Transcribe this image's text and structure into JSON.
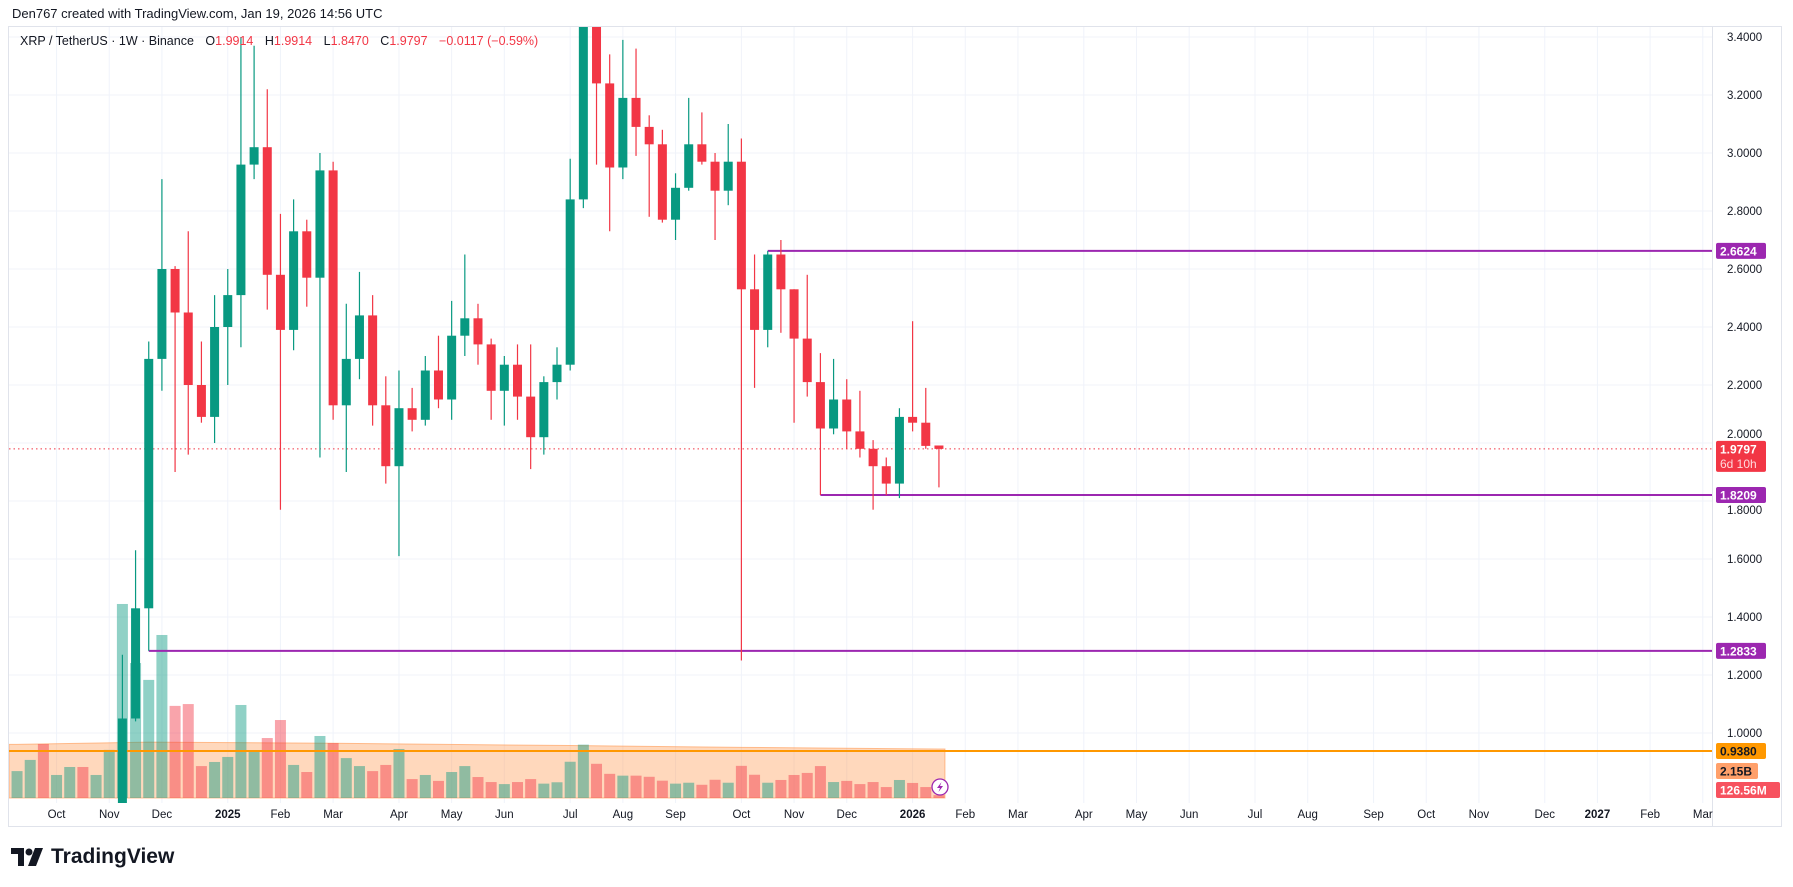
{
  "attribution": "Den767 created with TradingView.com, Jan 19, 2026 14:56 UTC",
  "legend": {
    "symbol": "XRP / TetherUS · 1W · Binance",
    "open_label": "O",
    "open": "1.9914",
    "high_label": "H",
    "high": "1.9914",
    "low_label": "L",
    "low": "1.8470",
    "close_label": "C",
    "close": "1.9797",
    "change": "−0.0117 (−0.59%)"
  },
  "branding": {
    "logo_text": "TradingView"
  },
  "colors": {
    "up": "#089981",
    "down": "#f23645",
    "level_line": "#9c27b0",
    "orange_line": "#ff9800",
    "volume_ma": "#ff9f5a",
    "grid": "#f0f3fa"
  },
  "chart_data": {
    "type": "candlestick",
    "interval": "1W",
    "y_axis": {
      "range": [
        0.77,
        3.43
      ],
      "ticks": [
        "3.4000",
        "3.2000",
        "3.0000",
        "2.8000",
        "2.6000",
        "2.4000",
        "2.2000",
        "2.0000",
        "1.8000",
        "1.6000",
        "1.4000",
        "1.2000",
        "1.0000"
      ],
      "position": "right"
    },
    "x_ticks": [
      {
        "label": "Oct",
        "date": "2024-10-07"
      },
      {
        "label": "Nov",
        "date": "2024-11-04"
      },
      {
        "label": "Dec",
        "date": "2024-12-02"
      },
      {
        "label": "2025",
        "date": "2025-01-06",
        "bold": true
      },
      {
        "label": "Feb",
        "date": "2025-02-03"
      },
      {
        "label": "Mar",
        "date": "2025-03-03"
      },
      {
        "label": "Apr",
        "date": "2025-04-07"
      },
      {
        "label": "May",
        "date": "2025-05-05"
      },
      {
        "label": "Jun",
        "date": "2025-06-02"
      },
      {
        "label": "Jul",
        "date": "2025-07-07"
      },
      {
        "label": "Aug",
        "date": "2025-08-04"
      },
      {
        "label": "Sep",
        "date": "2025-09-01"
      },
      {
        "label": "Oct",
        "date": "2025-10-06"
      },
      {
        "label": "Nov",
        "date": "2025-11-03"
      },
      {
        "label": "Dec",
        "date": "2025-12-01"
      },
      {
        "label": "2026",
        "date": "2026-01-05",
        "bold": true
      },
      {
        "label": "Feb",
        "date": "2026-02-02"
      },
      {
        "label": "Mar",
        "date": "2026-03-02"
      },
      {
        "label": "Apr",
        "date": "2026-04-06"
      },
      {
        "label": "May",
        "date": "2026-05-04"
      },
      {
        "label": "Jun",
        "date": "2026-06-01"
      },
      {
        "label": "Jul",
        "date": "2026-07-06"
      },
      {
        "label": "Aug",
        "date": "2026-08-03"
      },
      {
        "label": "Sep",
        "date": "2026-09-07"
      },
      {
        "label": "Oct",
        "date": "2026-10-05"
      },
      {
        "label": "Nov",
        "date": "2026-11-02"
      },
      {
        "label": "Dec",
        "date": "2026-12-07"
      },
      {
        "label": "2027",
        "date": "2027-01-04",
        "bold": true
      },
      {
        "label": "Feb",
        "date": "2027-02-01"
      },
      {
        "label": "Mar",
        "date": "2027-03-01"
      }
    ],
    "grid": true,
    "columns": [
      "date",
      "open",
      "high",
      "low",
      "close",
      "volume_billions",
      "direction"
    ],
    "rows": [
      [
        "2024-09-16",
        null,
        null,
        null,
        null,
        1.18,
        "up"
      ],
      [
        "2024-09-23",
        null,
        null,
        null,
        null,
        1.67,
        "up"
      ],
      [
        "2024-09-30",
        null,
        null,
        null,
        null,
        2.37,
        "down"
      ],
      [
        "2024-10-07",
        null,
        null,
        null,
        null,
        1.01,
        "up"
      ],
      [
        "2024-10-14",
        null,
        null,
        null,
        null,
        1.36,
        "up"
      ],
      [
        "2024-10-21",
        null,
        null,
        null,
        null,
        1.36,
        "down"
      ],
      [
        "2024-10-28",
        null,
        null,
        null,
        null,
        1.01,
        "up"
      ],
      [
        "2024-11-04",
        null,
        null,
        null,
        null,
        2.11,
        "up"
      ],
      [
        "2024-11-11",
        0.57,
        1.27,
        0.55,
        1.05,
        8.51,
        "up"
      ],
      [
        "2024-11-18",
        1.05,
        1.63,
        1.04,
        1.43,
        5.92,
        "up"
      ],
      [
        "2024-11-25",
        1.43,
        2.35,
        1.2833,
        2.29,
        5.18,
        "up"
      ],
      [
        "2024-12-02",
        2.29,
        2.91,
        2.18,
        2.6,
        7.15,
        "up"
      ],
      [
        "2024-12-09",
        2.6,
        2.61,
        1.9,
        2.45,
        4.04,
        "down"
      ],
      [
        "2024-12-16",
        2.45,
        2.73,
        1.96,
        2.2,
        4.12,
        "down"
      ],
      [
        "2024-12-23",
        2.2,
        2.35,
        2.07,
        2.09,
        1.4,
        "down"
      ],
      [
        "2024-12-30",
        2.09,
        2.51,
        2.0,
        2.4,
        1.58,
        "up"
      ],
      [
        "2025-01-06",
        2.4,
        2.6,
        2.2,
        2.51,
        1.8,
        "up"
      ],
      [
        "2025-01-13",
        2.51,
        3.4,
        2.33,
        2.96,
        4.08,
        "up"
      ],
      [
        "2025-01-20",
        2.96,
        3.37,
        2.91,
        3.02,
        2.02,
        "up"
      ],
      [
        "2025-01-27",
        3.02,
        3.22,
        2.46,
        2.58,
        2.63,
        "down"
      ],
      [
        "2025-02-03",
        2.58,
        2.79,
        1.77,
        2.39,
        3.42,
        "down"
      ],
      [
        "2025-02-10",
        2.39,
        2.84,
        2.32,
        2.73,
        1.45,
        "up"
      ],
      [
        "2025-02-17",
        2.73,
        2.77,
        2.47,
        2.57,
        1.14,
        "down"
      ],
      [
        "2025-02-24",
        2.57,
        3.0,
        1.95,
        2.94,
        2.72,
        "up"
      ],
      [
        "2025-03-03",
        2.94,
        2.97,
        2.08,
        2.13,
        2.41,
        "down"
      ],
      [
        "2025-03-10",
        2.13,
        2.48,
        1.9,
        2.29,
        1.75,
        "up"
      ],
      [
        "2025-03-17",
        2.29,
        2.59,
        2.22,
        2.44,
        1.4,
        "up"
      ],
      [
        "2025-03-24",
        2.44,
        2.51,
        2.06,
        2.13,
        1.18,
        "down"
      ],
      [
        "2025-03-31",
        2.13,
        2.23,
        1.86,
        1.92,
        1.45,
        "down"
      ],
      [
        "2025-04-07",
        1.92,
        2.25,
        1.61,
        2.12,
        2.15,
        "up"
      ],
      [
        "2025-04-14",
        2.12,
        2.19,
        2.04,
        2.08,
        0.83,
        "down"
      ],
      [
        "2025-04-21",
        2.08,
        2.3,
        2.06,
        2.25,
        1.01,
        "up"
      ],
      [
        "2025-04-28",
        2.25,
        2.37,
        2.12,
        2.15,
        0.75,
        "down"
      ],
      [
        "2025-05-05",
        2.15,
        2.49,
        2.08,
        2.37,
        1.14,
        "up"
      ],
      [
        "2025-05-12",
        2.37,
        2.65,
        2.3,
        2.43,
        1.4,
        "up"
      ],
      [
        "2025-05-19",
        2.43,
        2.48,
        2.27,
        2.34,
        0.92,
        "down"
      ],
      [
        "2025-05-26",
        2.34,
        2.36,
        2.08,
        2.18,
        0.7,
        "down"
      ],
      [
        "2025-06-02",
        2.18,
        2.3,
        2.06,
        2.27,
        0.61,
        "up"
      ],
      [
        "2025-06-09",
        2.27,
        2.34,
        2.08,
        2.16,
        0.7,
        "down"
      ],
      [
        "2025-06-16",
        2.16,
        2.34,
        1.91,
        2.02,
        0.83,
        "down"
      ],
      [
        "2025-06-23",
        2.02,
        2.23,
        1.96,
        2.21,
        0.63,
        "up"
      ],
      [
        "2025-06-30",
        2.21,
        2.33,
        2.15,
        2.27,
        0.69,
        "up"
      ],
      [
        "2025-07-07",
        2.27,
        2.98,
        2.25,
        2.84,
        1.59,
        "up"
      ],
      [
        "2025-07-14",
        2.84,
        3.66,
        2.81,
        3.52,
        2.34,
        "up"
      ],
      [
        "2025-07-21",
        3.52,
        3.6,
        2.96,
        3.24,
        1.5,
        "down"
      ],
      [
        "2025-07-28",
        3.24,
        3.34,
        2.73,
        2.95,
        1.06,
        "down"
      ],
      [
        "2025-08-04",
        2.95,
        3.39,
        2.91,
        3.19,
        0.98,
        "up"
      ],
      [
        "2025-08-11",
        3.19,
        3.36,
        2.99,
        3.09,
        0.98,
        "down"
      ],
      [
        "2025-08-18",
        3.09,
        3.13,
        2.78,
        3.03,
        0.93,
        "down"
      ],
      [
        "2025-08-25",
        3.03,
        3.08,
        2.76,
        2.77,
        0.76,
        "down"
      ],
      [
        "2025-09-01",
        2.77,
        2.93,
        2.7,
        2.88,
        0.63,
        "up"
      ],
      [
        "2025-09-08",
        2.88,
        3.19,
        2.87,
        3.03,
        0.67,
        "up"
      ],
      [
        "2025-09-15",
        3.03,
        3.14,
        2.96,
        2.97,
        0.58,
        "down"
      ],
      [
        "2025-09-22",
        2.97,
        3.0,
        2.7,
        2.87,
        0.8,
        "down"
      ],
      [
        "2025-09-29",
        2.87,
        3.1,
        2.82,
        2.97,
        0.67,
        "up"
      ],
      [
        "2025-10-06",
        2.97,
        3.05,
        1.25,
        2.53,
        1.41,
        "down"
      ],
      [
        "2025-10-13",
        2.53,
        2.65,
        2.19,
        2.39,
        1.02,
        "down"
      ],
      [
        "2025-10-20",
        2.39,
        2.6624,
        2.33,
        2.65,
        0.67,
        "up"
      ],
      [
        "2025-10-27",
        2.65,
        2.7,
        2.38,
        2.53,
        0.79,
        "down"
      ],
      [
        "2025-11-03",
        2.53,
        2.53,
        2.07,
        2.36,
        1.01,
        "down"
      ],
      [
        "2025-11-10",
        2.36,
        2.58,
        2.16,
        2.21,
        1.1,
        "down"
      ],
      [
        "2025-11-17",
        2.21,
        2.31,
        1.8209,
        2.05,
        1.4,
        "down"
      ],
      [
        "2025-11-24",
        2.05,
        2.29,
        2.03,
        2.15,
        0.7,
        "up"
      ],
      [
        "2025-12-01",
        2.15,
        2.22,
        1.98,
        2.04,
        0.75,
        "down"
      ],
      [
        "2025-12-08",
        2.04,
        2.18,
        1.95,
        1.98,
        0.61,
        "down"
      ],
      [
        "2025-12-15",
        1.98,
        2.01,
        1.77,
        1.92,
        0.7,
        "down"
      ],
      [
        "2025-12-22",
        1.92,
        1.95,
        1.82,
        1.86,
        0.48,
        "down"
      ],
      [
        "2025-12-29",
        1.86,
        2.12,
        1.81,
        2.09,
        0.79,
        "up"
      ],
      [
        "2026-01-05",
        2.09,
        2.42,
        2.04,
        2.07,
        0.66,
        "down"
      ],
      [
        "2026-01-12",
        2.07,
        2.19,
        1.98,
        1.99,
        0.48,
        "down"
      ],
      [
        "2026-01-19",
        1.9914,
        1.9914,
        1.847,
        1.9797,
        0.12656,
        "down"
      ]
    ],
    "volume_ma_points": [
      {
        "date": "2024-09-16",
        "value": 2.35
      },
      {
        "date": "2024-11-25",
        "value": 2.45
      },
      {
        "date": "2025-03-03",
        "value": 2.4
      },
      {
        "date": "2025-07-07",
        "value": 2.3
      },
      {
        "date": "2025-10-06",
        "value": 2.22
      },
      {
        "date": "2026-01-19",
        "value": 2.15
      }
    ],
    "horizontal_lines": [
      {
        "price": 2.6624,
        "from": "2025-10-20",
        "color": "#9c27b0",
        "label": "2.6624"
      },
      {
        "price": 1.8209,
        "from": "2025-11-17",
        "color": "#9c27b0",
        "label": "1.8209"
      },
      {
        "price": 1.2833,
        "from": "2024-11-25",
        "color": "#9c27b0",
        "label": "1.2833"
      },
      {
        "price": 0.938,
        "from": null,
        "color": "#ff9800",
        "label": "0.9380"
      }
    ],
    "last_price": {
      "price": 1.9797,
      "label": "1.9797",
      "countdown": "6d 10h",
      "color": "#f23645"
    },
    "volume_labels": {
      "ma": "2.15B",
      "last": "126.56M"
    }
  }
}
